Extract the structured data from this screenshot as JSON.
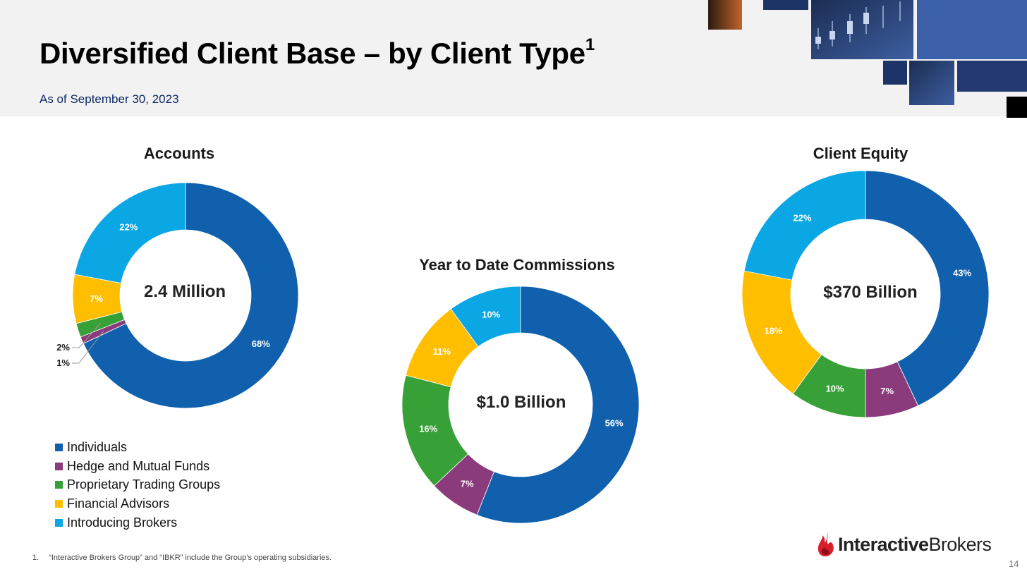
{
  "header": {
    "title": "Diversified Client Base – by Client Type",
    "title_footnote_marker": "1",
    "subtitle": "As of September 30, 2023"
  },
  "legend": {
    "items": [
      {
        "label": "Individuals",
        "color": "#1060ad"
      },
      {
        "label": "Hedge and Mutual Funds",
        "color": "#8b3a7c"
      },
      {
        "label": "Proprietary Trading Groups",
        "color": "#37a137"
      },
      {
        "label": "Financial Advisors",
        "color": "#ffbf00"
      },
      {
        "label": "Introducing Brokers",
        "color": "#0aa7e4"
      }
    ]
  },
  "chart_data": [
    {
      "type": "pie",
      "title": "Accounts",
      "center_label": "2.4 Million",
      "categories": [
        "Individuals",
        "Hedge and Mutual Funds",
        "Proprietary Trading Groups",
        "Financial Advisors",
        "Introducing Brokers"
      ],
      "values": [
        68,
        1,
        2,
        7,
        22
      ],
      "labels": [
        "68%",
        "1%",
        "2%",
        "7%",
        "22%"
      ]
    },
    {
      "type": "pie",
      "title": "Year to Date Commissions",
      "center_label": "$1.0 Billion",
      "categories": [
        "Individuals",
        "Hedge and Mutual Funds",
        "Proprietary Trading Groups",
        "Financial Advisors",
        "Introducing Brokers"
      ],
      "values": [
        56,
        7,
        16,
        11,
        10
      ],
      "labels": [
        "56%",
        "7%",
        "16%",
        "11%",
        "10%"
      ]
    },
    {
      "type": "pie",
      "title": "Client Equity",
      "center_label": "$370 Billion",
      "categories": [
        "Individuals",
        "Hedge and Mutual Funds",
        "Proprietary Trading Groups",
        "Financial Advisors",
        "Introducing Brokers"
      ],
      "values": [
        43,
        7,
        10,
        18,
        22
      ],
      "labels": [
        "43%",
        "7%",
        "10%",
        "18%",
        "22%"
      ]
    }
  ],
  "footnote": {
    "number": "1.",
    "text": "“Interactive Brokers Group” and “IBKR” include the Group’s operating subsidiaries."
  },
  "logo": {
    "bold": "Interactive",
    "regular": "Brokers",
    "color": "#d81e2a"
  },
  "page_number": "14"
}
